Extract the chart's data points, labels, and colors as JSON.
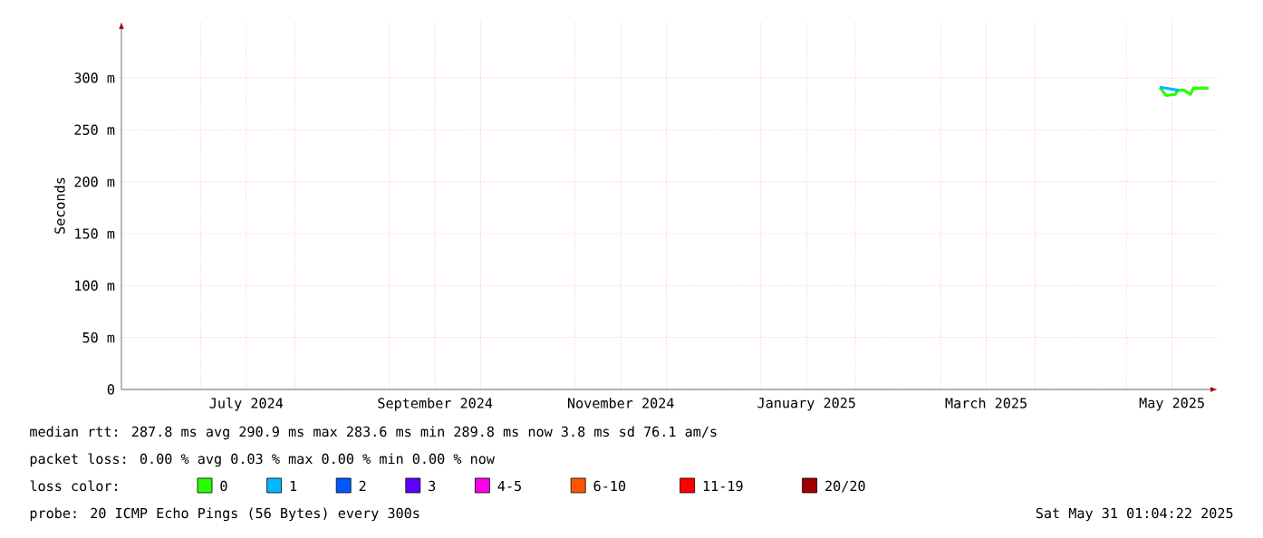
{
  "chart_data": {
    "type": "line",
    "ylabel": "Seconds",
    "legend_title": "loss color:",
    "legend": "bottom",
    "grid": true,
    "marker": "none",
    "line_style": "solid",
    "xlim": [
      "2024-06-05",
      "2025-05-31"
    ],
    "xticks": [
      {
        "value": "2024-07-01",
        "label": null
      },
      {
        "value": "2024-07-16",
        "label": "July 2024"
      },
      {
        "value": "2024-08-01",
        "label": null
      },
      {
        "value": "2024-09-01",
        "label": null
      },
      {
        "value": "2024-09-16",
        "label": "September 2024"
      },
      {
        "value": "2024-10-01",
        "label": null
      },
      {
        "value": "2024-11-01",
        "label": null
      },
      {
        "value": "2024-11-16",
        "label": "November 2024"
      },
      {
        "value": "2024-12-01",
        "label": null
      },
      {
        "value": "2025-01-01",
        "label": null
      },
      {
        "value": "2025-01-16",
        "label": "January 2025"
      },
      {
        "value": "2025-02-01",
        "label": null
      },
      {
        "value": "2025-03-01",
        "label": null
      },
      {
        "value": "2025-03-16",
        "label": "March 2025"
      },
      {
        "value": "2025-04-01",
        "label": null
      },
      {
        "value": "2025-05-01",
        "label": null
      },
      {
        "value": "2025-05-16",
        "label": "May 2025"
      }
    ],
    "ylim": [
      0,
      354
    ],
    "yticks": [
      {
        "value": 0,
        "label": "0"
      },
      {
        "value": 50,
        "label": "50 m"
      },
      {
        "value": 100,
        "label": "100 m"
      },
      {
        "value": 150,
        "label": "150 m"
      },
      {
        "value": 200,
        "label": "200 m"
      },
      {
        "value": 250,
        "label": "250 m"
      },
      {
        "value": 300,
        "label": "300 m"
      }
    ],
    "series": [
      {
        "name": "0",
        "color": "#26ff00",
        "x": [
          "2025-05-12",
          "2025-05-14",
          "2025-05-17",
          "2025-05-18",
          "2025-05-20",
          "2025-05-22",
          "2025-05-23",
          "2025-05-28"
        ],
        "values": [
          291,
          283,
          284,
          288,
          288,
          284,
          290,
          290
        ]
      },
      {
        "name": "1",
        "color": "#00b8ff",
        "x": [
          "2025-05-12",
          "2025-05-18"
        ],
        "values": [
          291,
          288
        ]
      },
      {
        "name": "2",
        "color": "#0059ff"
      },
      {
        "name": "3",
        "color": "#5e00ff"
      },
      {
        "name": "4-5",
        "color": "#ff00ea"
      },
      {
        "name": "6-10",
        "color": "#ff5500"
      },
      {
        "name": "11-19",
        "color": "#ff0000"
      },
      {
        "name": "20/20",
        "color": "#a10000"
      }
    ],
    "annotations": [
      "median rtt:  287.8 ms avg  290.9 ms max  283.6 ms min  289.8 ms now  3.8 ms sd  76.1   am/s",
      "packet loss: 0.00 % avg  0.03 % max  0.00 % min  0.00 % now",
      "probe:       20 ICMP Echo Pings (56 Bytes) every 300s",
      "Sat May 31 01:04:22 2025"
    ]
  }
}
